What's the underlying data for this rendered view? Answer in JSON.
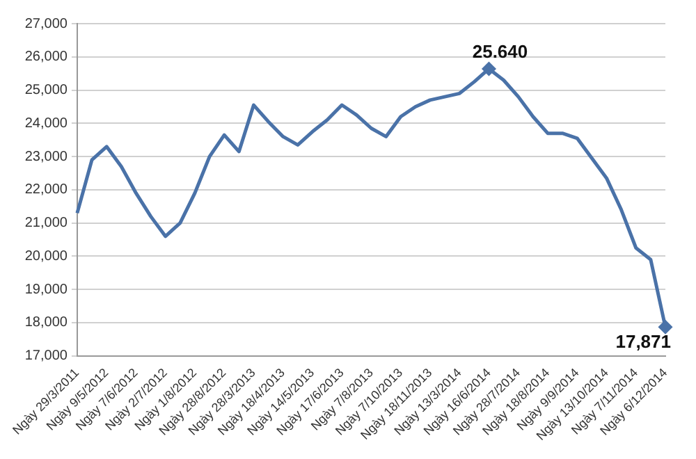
{
  "chart_data": {
    "type": "line",
    "categories": [
      "Ngày 29/3/2011",
      null,
      "Ngày 9/5/2012",
      null,
      "Ngày 7/6/2012",
      null,
      "Ngày 2/7/2012",
      null,
      "Ngày 1/8/2012",
      null,
      "Ngày 28/8/2012",
      null,
      "Ngày 28/3/2013",
      null,
      "Ngày 18/4/2013",
      null,
      "Ngày 14/5/2013",
      null,
      "Ngày 17/6/2013",
      null,
      "Ngày 7/8/2013",
      null,
      "Ngày 7/10/2013",
      null,
      "Ngày 18/11/2013",
      null,
      "Ngày 13/3/2014",
      null,
      "Ngày 16/6/2014",
      null,
      "Ngày 28/7/2014",
      null,
      "Ngày 18/8/2014",
      null,
      "Ngày 9/9/2014",
      null,
      "Ngày 13/10/2014",
      null,
      "Ngày 7/11/2014",
      null,
      "Ngày 6/12/2014"
    ],
    "series": [
      {
        "color": "#4a72a8",
        "values": [
          21300,
          22900,
          23300,
          22700,
          21900,
          21200,
          20600,
          21000,
          21900,
          23000,
          23650,
          23150,
          24550,
          24050,
          23600,
          23350,
          23750,
          24100,
          24550,
          24250,
          23850,
          23600,
          24200,
          24500,
          24700,
          24800,
          24900,
          25250,
          25640,
          25300,
          24800,
          24200,
          23700,
          23700,
          23550,
          22950,
          22350,
          21400,
          20250,
          19900,
          17871
        ],
        "value_labels": [
          null,
          null,
          null,
          null,
          null,
          null,
          null,
          null,
          null,
          null,
          null,
          null,
          null,
          null,
          null,
          null,
          null,
          null,
          null,
          null,
          null,
          null,
          null,
          null,
          null,
          null,
          null,
          null,
          null,
          null,
          null,
          null,
          null,
          null,
          null,
          null,
          null,
          null,
          null,
          null,
          "17,871"
        ]
      }
    ],
    "ylim": [
      17000,
      27000
    ],
    "yticks": [
      {
        "value": 17000,
        "label": "17,000"
      },
      {
        "value": 18000,
        "label": "18,000"
      },
      {
        "value": 19000,
        "label": "19,000"
      },
      {
        "value": 20000,
        "label": "20,000"
      },
      {
        "value": 21000,
        "label": "21,000"
      },
      {
        "value": 22000,
        "label": "22,000"
      },
      {
        "value": 23000,
        "label": "23,000"
      },
      {
        "value": 24000,
        "label": "24,000"
      },
      {
        "value": 25000,
        "label": "25,000"
      },
      {
        "value": 26000,
        "label": "26,000"
      },
      {
        "value": 27000,
        "label": "27,000"
      }
    ],
    "annotations": [
      {
        "text": "25.640",
        "y": 25640
      }
    ],
    "grid": "y"
  }
}
